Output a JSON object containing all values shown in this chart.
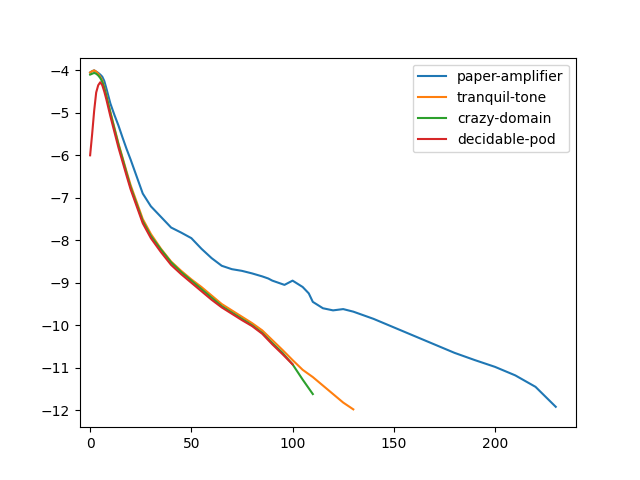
{
  "legend_labels": [
    "paper-amplifier",
    "tranquil-tone",
    "crazy-domain",
    "decidable-pod"
  ],
  "colors": [
    "#1f77b4",
    "#ff7f0e",
    "#2ca02c",
    "#d62728"
  ],
  "xlim": [
    -5,
    240
  ],
  "ylim": [
    -12.4,
    -3.7
  ],
  "blue": {
    "x": [
      0,
      1,
      2,
      3,
      4,
      5,
      6,
      7,
      8,
      9,
      10,
      12,
      14,
      16,
      18,
      20,
      23,
      26,
      30,
      35,
      38,
      40,
      45,
      50,
      55,
      60,
      65,
      70,
      75,
      80,
      85,
      88,
      90,
      93,
      96,
      100,
      105,
      108,
      110,
      115,
      120,
      125,
      130,
      140,
      150,
      160,
      170,
      180,
      190,
      200,
      210,
      220,
      230
    ],
    "y": [
      -4.05,
      -4.02,
      -4.0,
      -4.03,
      -4.06,
      -4.1,
      -4.15,
      -4.25,
      -4.42,
      -4.6,
      -4.78,
      -5.05,
      -5.3,
      -5.58,
      -5.85,
      -6.1,
      -6.5,
      -6.9,
      -7.2,
      -7.45,
      -7.6,
      -7.7,
      -7.82,
      -7.95,
      -8.2,
      -8.42,
      -8.6,
      -8.68,
      -8.72,
      -8.78,
      -8.85,
      -8.9,
      -8.95,
      -9.0,
      -9.05,
      -8.95,
      -9.1,
      -9.25,
      -9.45,
      -9.6,
      -9.65,
      -9.62,
      -9.68,
      -9.85,
      -10.05,
      -10.25,
      -10.45,
      -10.65,
      -10.82,
      -10.98,
      -11.18,
      -11.45,
      -11.92
    ]
  },
  "orange": {
    "x": [
      0,
      1,
      2,
      3,
      4,
      5,
      6,
      7,
      8,
      9,
      10,
      12,
      14,
      16,
      18,
      20,
      23,
      26,
      30,
      35,
      40,
      45,
      50,
      55,
      60,
      65,
      70,
      75,
      80,
      85,
      90,
      95,
      100,
      105,
      110,
      115,
      120,
      125,
      130
    ],
    "y": [
      -4.05,
      -4.02,
      -4.0,
      -4.03,
      -4.08,
      -4.15,
      -4.24,
      -4.4,
      -4.58,
      -4.78,
      -4.98,
      -5.35,
      -5.72,
      -6.05,
      -6.38,
      -6.7,
      -7.1,
      -7.5,
      -7.85,
      -8.2,
      -8.5,
      -8.72,
      -8.92,
      -9.1,
      -9.3,
      -9.5,
      -9.65,
      -9.8,
      -9.95,
      -10.12,
      -10.35,
      -10.58,
      -10.82,
      -11.05,
      -11.22,
      -11.42,
      -11.62,
      -11.82,
      -11.98
    ]
  },
  "green": {
    "x": [
      0,
      1,
      2,
      3,
      4,
      5,
      6,
      7,
      8,
      9,
      10,
      12,
      14,
      16,
      18,
      20,
      23,
      26,
      30,
      35,
      40,
      45,
      50,
      55,
      60,
      65,
      70,
      75,
      80,
      85,
      90,
      95,
      100,
      105,
      110
    ],
    "y": [
      -4.1,
      -4.08,
      -4.06,
      -4.08,
      -4.12,
      -4.18,
      -4.27,
      -4.42,
      -4.6,
      -4.8,
      -5.0,
      -5.38,
      -5.75,
      -6.08,
      -6.42,
      -6.75,
      -7.15,
      -7.55,
      -7.9,
      -8.22,
      -8.52,
      -8.75,
      -8.95,
      -9.15,
      -9.35,
      -9.55,
      -9.7,
      -9.85,
      -10.0,
      -10.18,
      -10.42,
      -10.65,
      -10.92,
      -11.28,
      -11.62
    ]
  },
  "red": {
    "x": [
      0,
      1,
      2,
      3,
      4,
      5,
      6,
      7,
      8,
      9,
      10,
      12,
      14,
      16,
      18,
      20,
      23,
      26,
      30,
      35,
      40,
      45,
      50,
      55,
      60,
      65,
      70,
      75,
      80,
      85,
      90,
      95,
      100
    ],
    "y": [
      -6.0,
      -5.5,
      -4.95,
      -4.52,
      -4.35,
      -4.28,
      -4.35,
      -4.5,
      -4.68,
      -4.88,
      -5.08,
      -5.45,
      -5.82,
      -6.15,
      -6.48,
      -6.8,
      -7.2,
      -7.6,
      -7.95,
      -8.28,
      -8.58,
      -8.8,
      -9.0,
      -9.2,
      -9.4,
      -9.58,
      -9.73,
      -9.88,
      -10.02,
      -10.2,
      -10.45,
      -10.68,
      -10.92
    ]
  }
}
